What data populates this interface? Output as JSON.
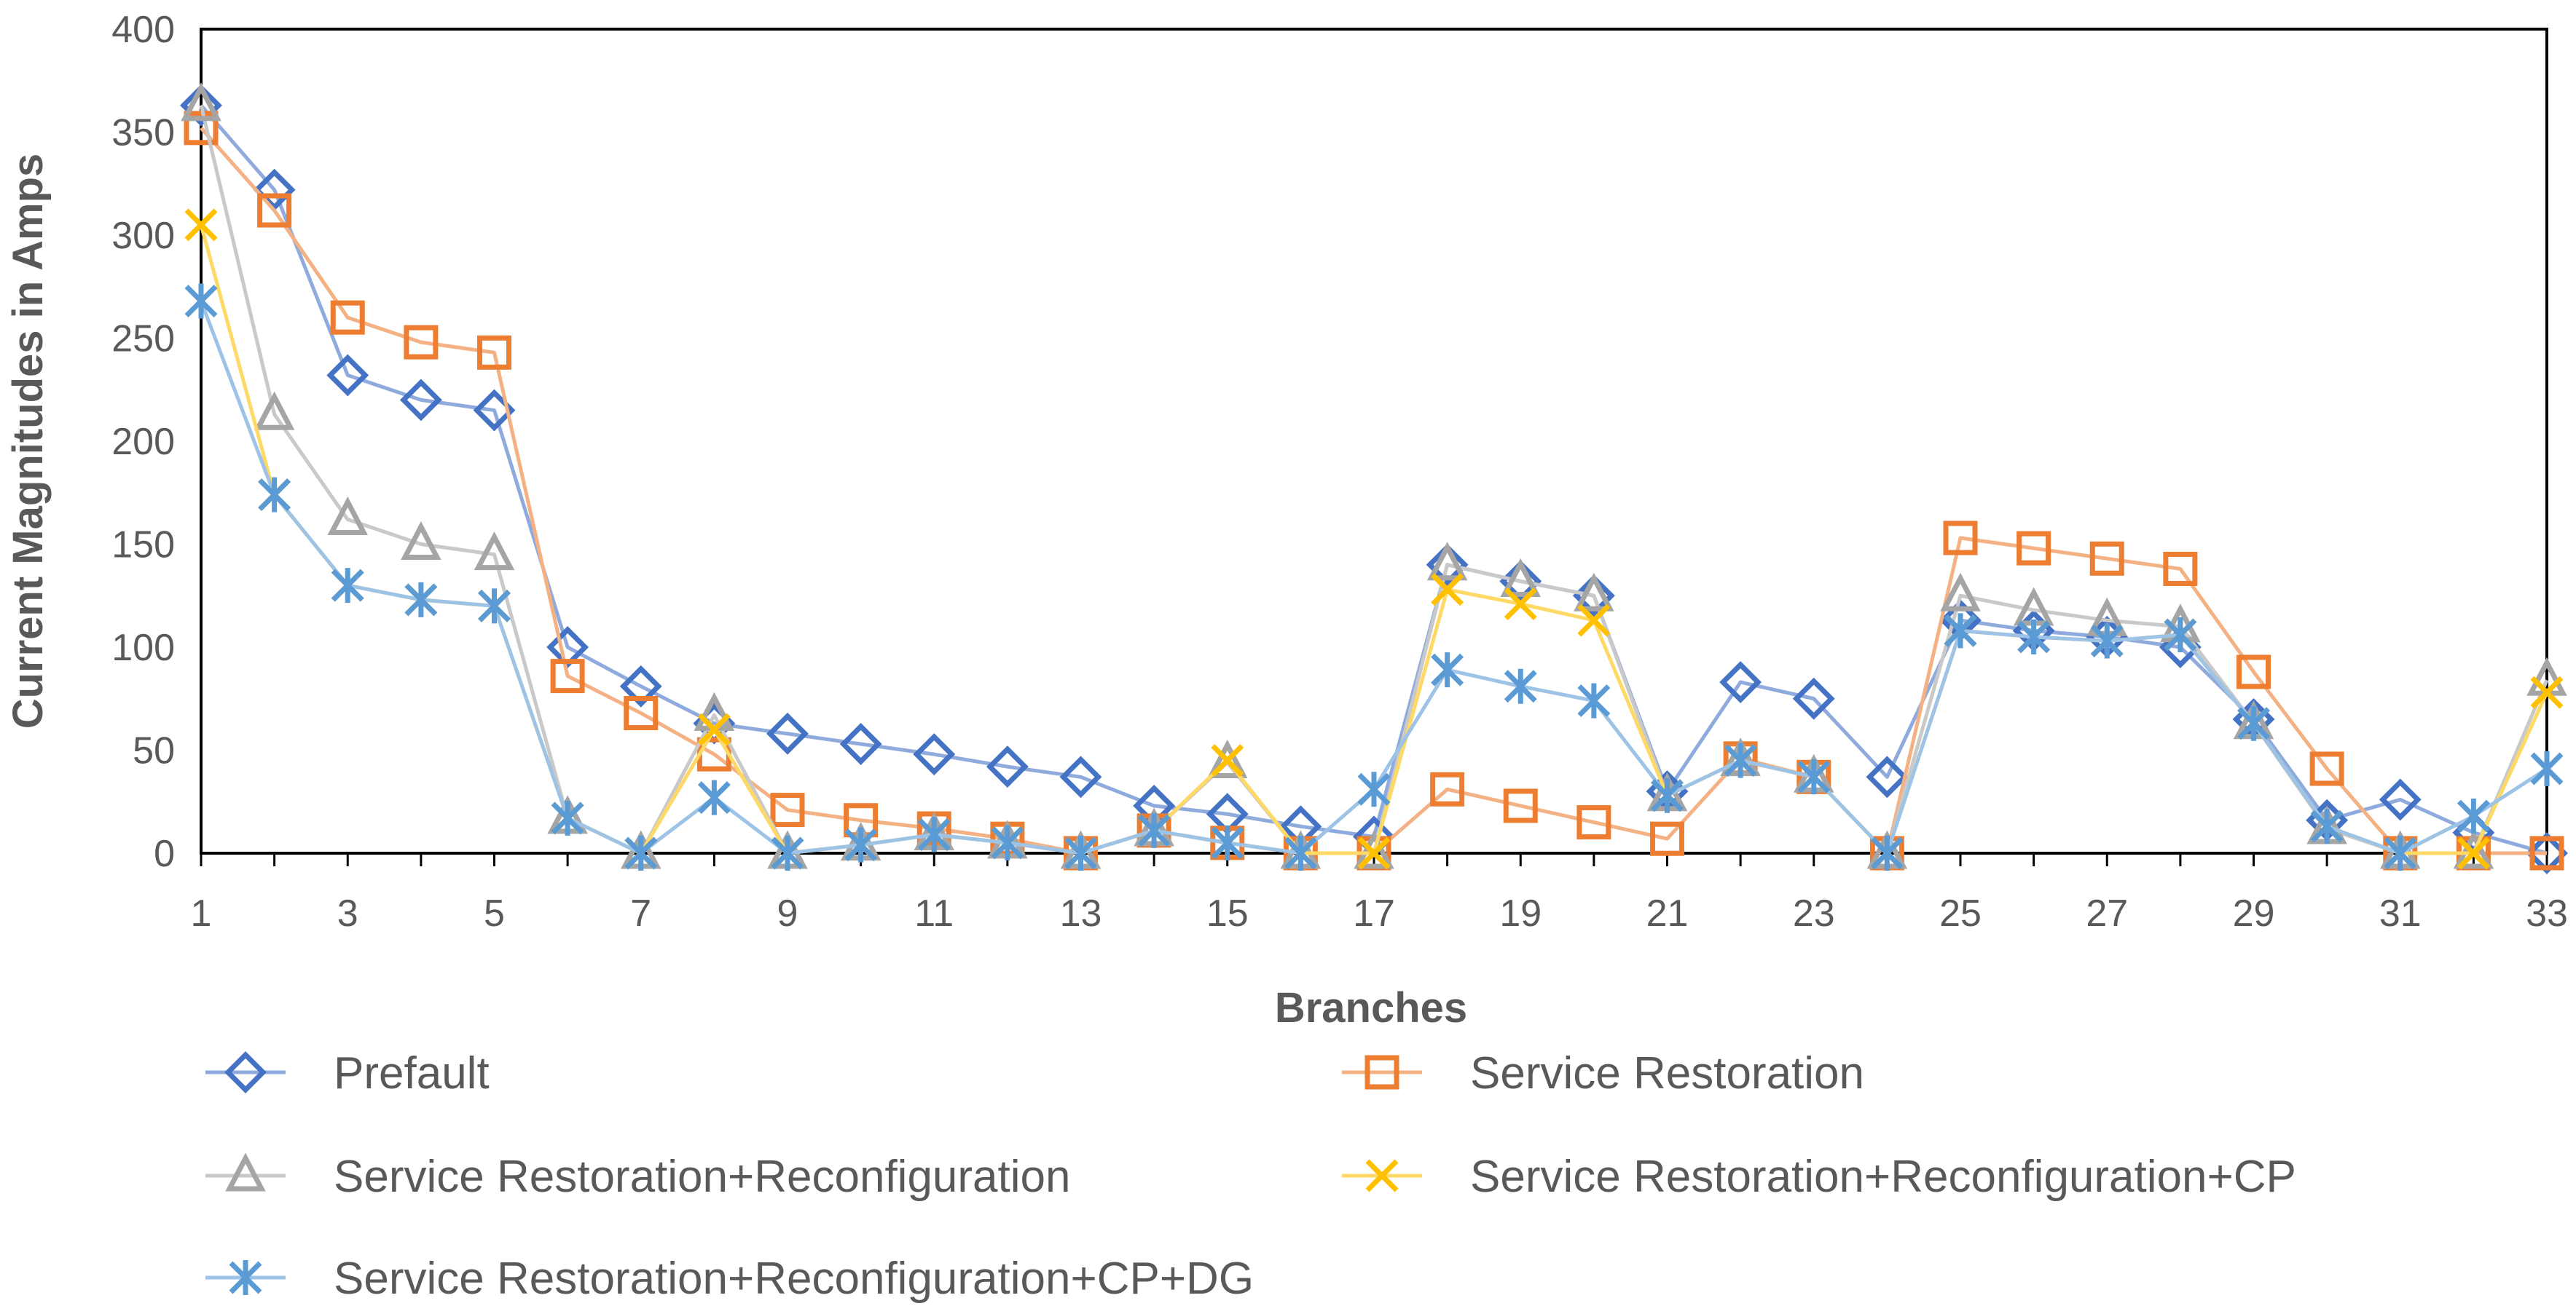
{
  "chart_data": {
    "type": "line",
    "title": "",
    "xlabel": "Branches",
    "ylabel": "Current Magnitudes in Amps",
    "xlim": [
      1,
      33
    ],
    "ylim": [
      0,
      400
    ],
    "x_ticks": [
      "1",
      "3",
      "5",
      "7",
      "9",
      "11",
      "13",
      "15",
      "17",
      "19",
      "21",
      "23",
      "25",
      "27",
      "29",
      "31",
      "33"
    ],
    "y_ticks": [
      "0",
      "50",
      "100",
      "150",
      "200",
      "250",
      "300",
      "350",
      "400"
    ],
    "legend_position": "bottom",
    "x": [
      1,
      2,
      3,
      4,
      5,
      6,
      7,
      8,
      9,
      10,
      11,
      12,
      13,
      14,
      15,
      16,
      17,
      18,
      19,
      20,
      21,
      22,
      23,
      24,
      25,
      26,
      27,
      28,
      29,
      30,
      31,
      32,
      33
    ],
    "series": [
      {
        "name": "Prefault",
        "marker": "diamond",
        "line_color": "#8faadc",
        "marker_color": "#4472c4",
        "values": [
          363,
          322,
          232,
          220,
          215,
          100,
          81,
          63,
          58,
          53,
          48,
          42,
          37,
          23,
          19,
          13,
          8,
          140,
          132,
          125,
          30,
          83,
          75,
          37,
          113,
          108,
          105,
          100,
          65,
          16,
          26,
          10,
          0
        ]
      },
      {
        "name": "Service Restoration",
        "marker": "square",
        "line_color": "#f4b183",
        "marker_color": "#ed7d31",
        "values": [
          352,
          312,
          260,
          248,
          243,
          86,
          68,
          48,
          21,
          16,
          12,
          7,
          0,
          11,
          5,
          0,
          0,
          31,
          23,
          15,
          7,
          46,
          37,
          0,
          153,
          148,
          143,
          138,
          88,
          41,
          0,
          0,
          0
        ]
      },
      {
        "name": "Service Restoration+Reconfiguration",
        "marker": "triangle",
        "line_color": "#c9c9c9",
        "marker_color": "#a5a5a5",
        "values": [
          363,
          213,
          162,
          150,
          145,
          17,
          0,
          67,
          0,
          4,
          9,
          5,
          0,
          11,
          44,
          0,
          0,
          140,
          132,
          125,
          28,
          45,
          37,
          0,
          125,
          118,
          113,
          110,
          63,
          12,
          0,
          0,
          84
        ]
      },
      {
        "name": "Service Restoration+Reconfiguration+CP",
        "marker": "x",
        "line_color": "#ffd966",
        "marker_color": "#ffc000",
        "values": [
          305,
          174,
          130,
          123,
          120,
          17,
          0,
          60,
          0,
          4,
          9,
          5,
          0,
          11,
          45,
          0,
          0,
          128,
          121,
          113,
          28,
          45,
          37,
          0,
          108,
          105,
          103,
          106,
          63,
          13,
          0,
          0,
          78
        ]
      },
      {
        "name": "Service Restoration+Reconfiguration+CP+DG",
        "marker": "asterisk",
        "line_color": "#9dc3e6",
        "marker_color": "#5b9bd5",
        "values": [
          268,
          174,
          130,
          123,
          120,
          17,
          0,
          27,
          0,
          4,
          9,
          5,
          0,
          11,
          5,
          0,
          31,
          89,
          81,
          74,
          28,
          45,
          37,
          0,
          108,
          105,
          103,
          106,
          63,
          13,
          0,
          18,
          41
        ]
      }
    ]
  }
}
